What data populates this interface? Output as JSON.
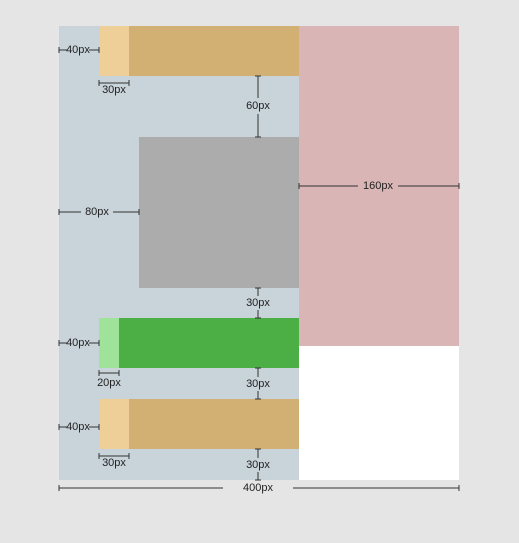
{
  "annotations": [
    "40px",
    "30px",
    "60px",
    "160px",
    "80px",
    "30px",
    "40px",
    "20px",
    "30px",
    "40px",
    "30px",
    "30px",
    "400px"
  ]
}
